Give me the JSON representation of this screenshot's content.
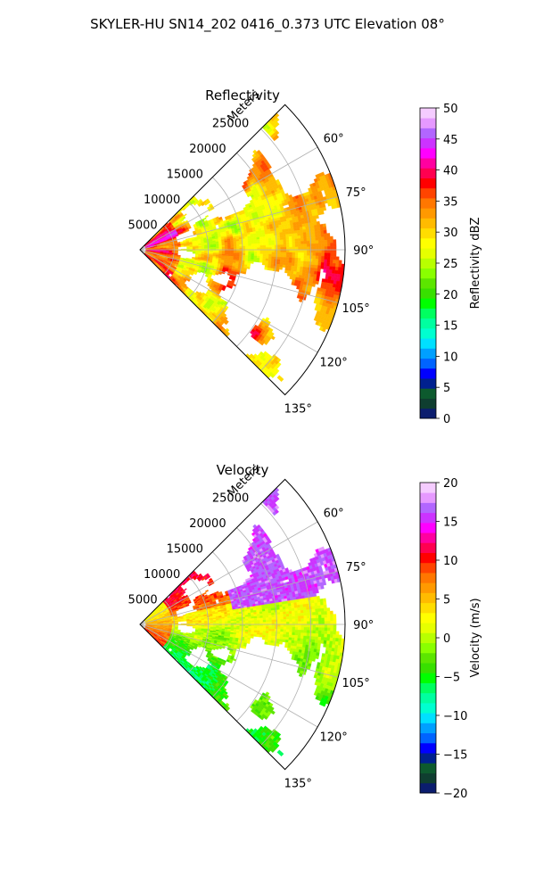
{
  "figure": {
    "suptitle": "SKYLER-HU  SN14_202  0416_0.373 UTC Elevation 08°"
  },
  "chart_data": [
    {
      "type": "polar-sector",
      "title": "Reflectivity",
      "range_label": "Meters",
      "range_ticks": [
        "5000",
        "10000",
        "15000",
        "20000",
        "25000"
      ],
      "range_tick_values": [
        5000,
        10000,
        15000,
        20000,
        25000
      ],
      "range_max": 30000,
      "azimuth_ticks": [
        "60°",
        "75°",
        "90°",
        "105°",
        "120°",
        "135°"
      ],
      "azimuth_tick_values": [
        60,
        75,
        90,
        105,
        120,
        135
      ],
      "azimuth_range": [
        45,
        135
      ],
      "grid": true,
      "colorbar": {
        "label": "Reflectivity dBZ",
        "min": 0,
        "max": 50,
        "ticks": [
          "0",
          "5",
          "10",
          "15",
          "20",
          "25",
          "30",
          "35",
          "40",
          "45",
          "50"
        ],
        "tick_values": [
          0,
          5,
          10,
          15,
          20,
          25,
          30,
          35,
          40,
          45,
          50
        ],
        "colors": [
          "#0b1d6e",
          "#0f3e30",
          "#0d5a2e",
          "#00208f",
          "#0000ff",
          "#0064ff",
          "#00a0ff",
          "#00e0ff",
          "#00ffd0",
          "#00ffa0",
          "#00ff60",
          "#00ff00",
          "#38e000",
          "#5ce600",
          "#8aff00",
          "#b8ff00",
          "#e6ff00",
          "#ffff00",
          "#ffdd00",
          "#ffbb00",
          "#ff9900",
          "#ff7700",
          "#ff4400",
          "#ff0000",
          "#ff0050",
          "#ff00a0",
          "#ff00ff",
          "#cc33ff",
          "#b266ff",
          "#e699ff",
          "#f5ccff"
        ]
      }
    },
    {
      "type": "polar-sector",
      "title": "Velocity",
      "range_label": "Meters",
      "range_ticks": [
        "5000",
        "10000",
        "15000",
        "20000",
        "25000"
      ],
      "range_tick_values": [
        5000,
        10000,
        15000,
        20000,
        25000
      ],
      "range_max": 30000,
      "azimuth_ticks": [
        "60°",
        "75°",
        "90°",
        "105°",
        "120°",
        "135°"
      ],
      "azimuth_tick_values": [
        60,
        75,
        90,
        105,
        120,
        135
      ],
      "azimuth_range": [
        45,
        135
      ],
      "grid": true,
      "colorbar": {
        "label": "Velocity (m/s)",
        "min": -20,
        "max": 20,
        "ticks": [
          "−20",
          "−15",
          "−10",
          "−5",
          "0",
          "5",
          "10",
          "15",
          "20"
        ],
        "tick_values": [
          -20,
          -15,
          -10,
          -5,
          0,
          5,
          10,
          15,
          20
        ],
        "colors": [
          "#0b1d6e",
          "#0f3e30",
          "#0d5a2e",
          "#00208f",
          "#0000ff",
          "#0064ff",
          "#00a0ff",
          "#00e0ff",
          "#00ffd0",
          "#00ffa0",
          "#00ff60",
          "#00ff00",
          "#38e000",
          "#5ce600",
          "#8aff00",
          "#b8ff00",
          "#e6ff00",
          "#ffff00",
          "#ffdd00",
          "#ffbb00",
          "#ff9900",
          "#ff7700",
          "#ff4400",
          "#ff0000",
          "#ff0050",
          "#ff00a0",
          "#ff00ff",
          "#cc33ff",
          "#b266ff",
          "#e699ff",
          "#f5ccff"
        ]
      }
    }
  ]
}
